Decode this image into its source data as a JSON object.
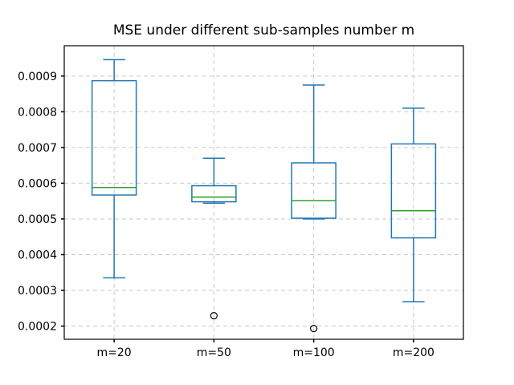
{
  "chart_data": {
    "type": "boxplot",
    "title": "MSE under different sub-samples number m",
    "categories": [
      "m=20",
      "m=50",
      "m=100",
      "m=200"
    ],
    "boxes": [
      {
        "label": "m=20",
        "whislo": 0.000335,
        "q1": 0.000567,
        "med": 0.000588,
        "q3": 0.000887,
        "whishi": 0.000946,
        "fliers": []
      },
      {
        "label": "m=50",
        "whislo": 0.000544,
        "q1": 0.000548,
        "med": 0.000561,
        "q3": 0.000593,
        "whishi": 0.00067,
        "fliers": [
          0.000229
        ]
      },
      {
        "label": "m=100",
        "whislo": 0.0005,
        "q1": 0.000502,
        "med": 0.000551,
        "q3": 0.000657,
        "whishi": 0.000875,
        "fliers": [
          0.000193
        ]
      },
      {
        "label": "m=200",
        "whislo": 0.000268,
        "q1": 0.000447,
        "med": 0.000523,
        "q3": 0.00071,
        "whishi": 0.00081,
        "fliers": []
      }
    ],
    "ylim": [
      0.000163,
      0.000985
    ],
    "yticks": [
      {
        "value": 0.0002,
        "label": "0.0002"
      },
      {
        "value": 0.0003,
        "label": "0.0003"
      },
      {
        "value": 0.0004,
        "label": "0.0004"
      },
      {
        "value": 0.0005,
        "label": "0.0005"
      },
      {
        "value": 0.0006,
        "label": "0.0006"
      },
      {
        "value": 0.0007,
        "label": "0.0007"
      },
      {
        "value": 0.0008,
        "label": "0.0008"
      },
      {
        "value": 0.0009,
        "label": "0.0009"
      }
    ],
    "xlabel": "",
    "ylabel": "",
    "legend": "none",
    "grid": "dashed, horizontal and vertical",
    "colors": {
      "box": "#1f77b4",
      "median": "#2ca02c",
      "flier": "#000000",
      "grid": "#c9c9c9",
      "axis": "#000000",
      "background": "#ffffff"
    }
  }
}
